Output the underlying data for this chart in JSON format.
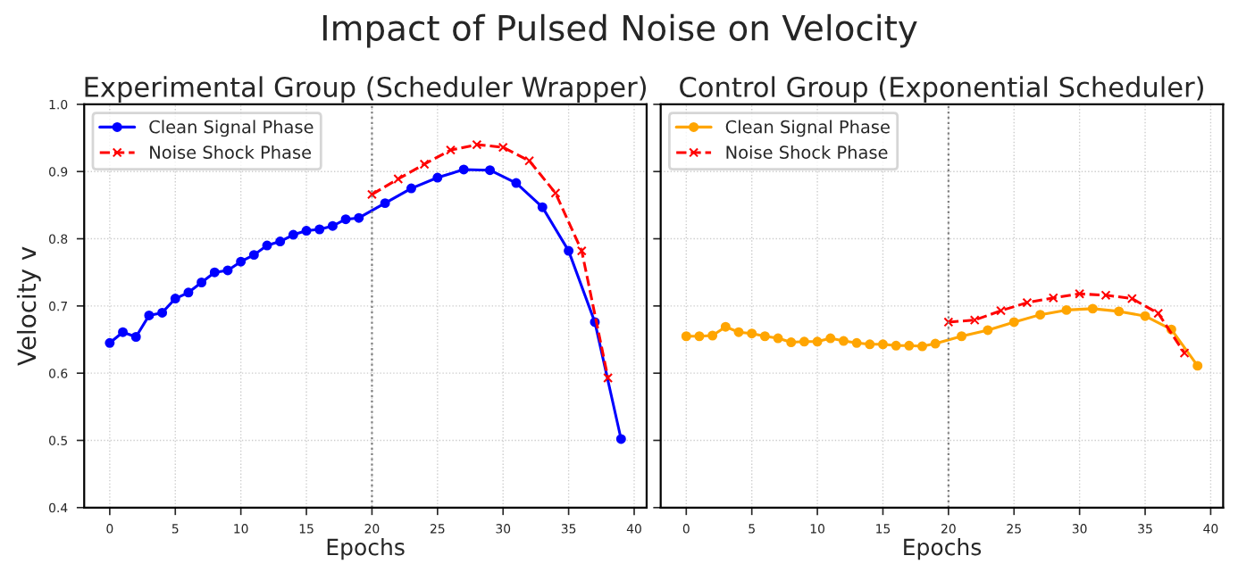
{
  "chart_data": [
    {
      "type": "line",
      "annotations": [
        "Impact of Pulsed Noise on Velocity"
      ],
      "title": "Experimental Group (Scheduler Wrapper)",
      "xlabel": "Epochs",
      "ylabel": "Velocity v",
      "xlim": [
        -1.95,
        40.95
      ],
      "xticks": [
        0,
        5,
        10,
        15,
        20,
        25,
        30,
        35,
        40
      ],
      "ylim": [
        0.4,
        1.0
      ],
      "yticks": [
        0.4,
        0.5,
        0.6,
        0.7,
        0.8,
        0.9,
        {
          "value": 1.0,
          "label": "1.0"
        }
      ],
      "grid": true,
      "legend": "top left",
      "ref_lines": [
        {
          "axis": "x",
          "value": 20,
          "color": "#808080",
          "line_style": "dotted"
        }
      ],
      "series": [
        {
          "name": "Clean Signal Phase",
          "color": "#0000ff",
          "marker": "circle",
          "line_style": "solid",
          "x": [
            0,
            1,
            2,
            3,
            4,
            5,
            6,
            7,
            8,
            9,
            10,
            11,
            12,
            13,
            14,
            15,
            16,
            17,
            18,
            19,
            21,
            23,
            25,
            27,
            29,
            31,
            33,
            35,
            37,
            39
          ],
          "values": [
            0.645,
            0.661,
            0.654,
            0.686,
            0.69,
            0.711,
            0.72,
            0.735,
            0.75,
            0.753,
            0.766,
            0.776,
            0.79,
            0.796,
            0.806,
            0.812,
            0.814,
            0.819,
            0.829,
            0.831,
            0.853,
            0.875,
            0.891,
            0.903,
            0.902,
            0.883,
            0.847,
            0.782,
            0.676,
            0.502
          ]
        },
        {
          "name": "Noise Shock Phase",
          "color": "#ff0000",
          "marker": "cross",
          "line_style": "dashed",
          "x": [
            20,
            22,
            24,
            26,
            28,
            30,
            32,
            34,
            36,
            38
          ],
          "values": [
            0.866,
            0.889,
            0.911,
            0.932,
            0.94,
            0.936,
            0.916,
            0.868,
            0.782,
            0.593
          ]
        }
      ]
    },
    {
      "type": "line",
      "title": "Control Group (Exponential Scheduler)",
      "xlabel": "Epochs",
      "xlim": [
        -1.95,
        40.95
      ],
      "xticks": [
        0,
        5,
        10,
        15,
        20,
        25,
        30,
        35,
        40
      ],
      "ylim": [
        0.4,
        1.0
      ],
      "yticks": [
        0.4,
        0.5,
        0.6,
        0.7,
        0.8,
        0.9,
        1.0
      ],
      "tick_labels": "x",
      "grid": true,
      "legend": "top left",
      "ref_lines": [
        {
          "axis": "x",
          "value": 20,
          "color": "#808080",
          "line_style": "dotted"
        }
      ],
      "series": [
        {
          "name": "Clean Signal Phase",
          "color": "#ffa500",
          "marker": "circle",
          "line_style": "solid",
          "x": [
            0,
            1,
            2,
            3,
            4,
            5,
            6,
            7,
            8,
            9,
            10,
            11,
            12,
            13,
            14,
            15,
            16,
            17,
            18,
            19,
            21,
            23,
            25,
            27,
            29,
            31,
            33,
            35,
            37,
            39
          ],
          "values": [
            0.655,
            0.655,
            0.656,
            0.669,
            0.661,
            0.659,
            0.655,
            0.652,
            0.646,
            0.647,
            0.647,
            0.652,
            0.648,
            0.645,
            0.643,
            0.643,
            0.641,
            0.641,
            0.64,
            0.644,
            0.655,
            0.664,
            0.676,
            0.687,
            0.694,
            0.696,
            0.692,
            0.685,
            0.665,
            0.611
          ]
        },
        {
          "name": "Noise Shock Phase",
          "color": "#ff0000",
          "marker": "cross",
          "line_style": "dashed",
          "x": [
            20,
            22,
            24,
            26,
            28,
            30,
            32,
            34,
            36,
            38
          ],
          "values": [
            0.676,
            0.679,
            0.693,
            0.705,
            0.712,
            0.718,
            0.716,
            0.711,
            0.689,
            0.63
          ]
        }
      ]
    }
  ]
}
